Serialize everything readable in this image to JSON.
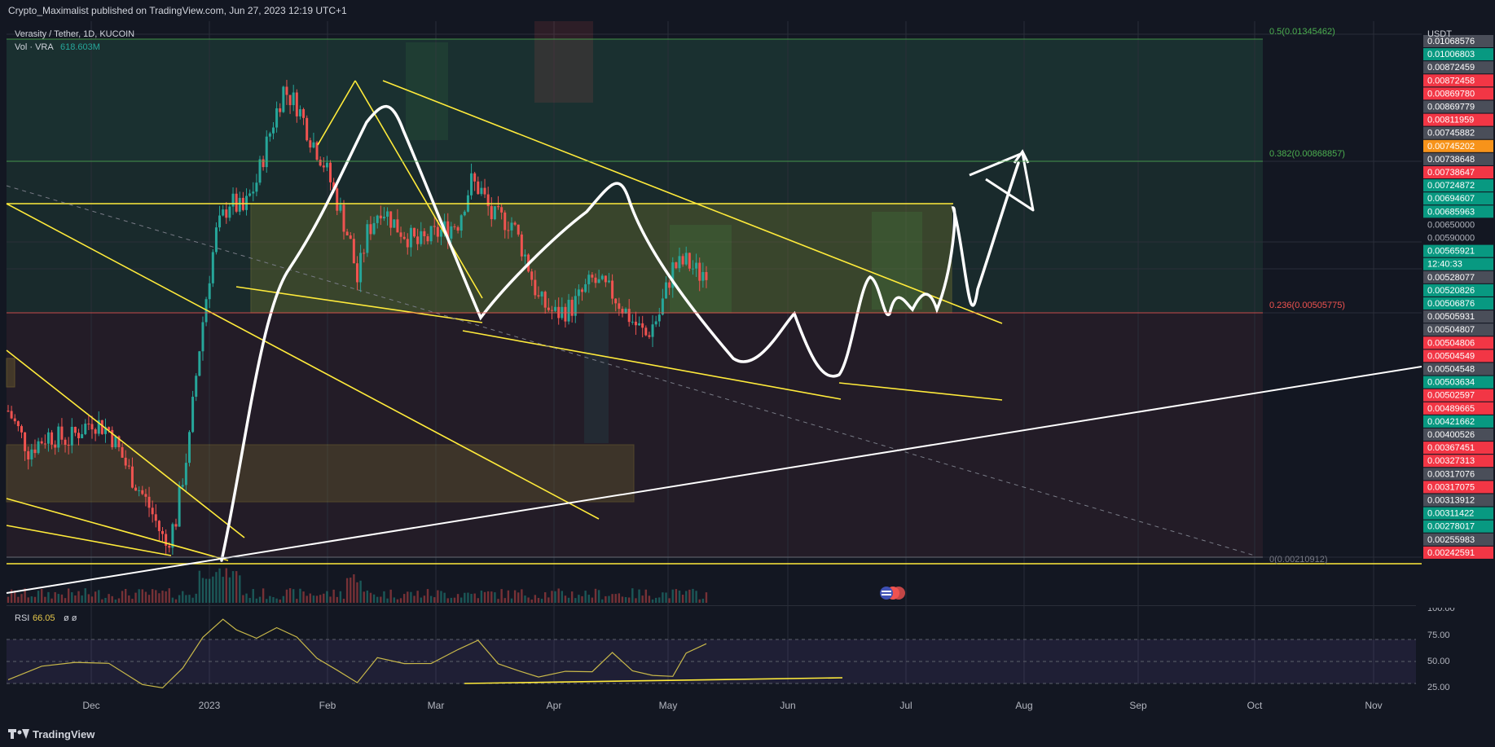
{
  "header": {
    "published": "Crypto_Maximalist published on TradingView.com, Jun 27, 2023 12:19 UTC+1"
  },
  "legend": {
    "symbol": "Verasity / Tether, 1D, KUCOIN",
    "vol_label": "Vol · VRA",
    "vol_value": "618.603M",
    "rsi_label": "RSI",
    "rsi_value": "66.05",
    "rsi_extra": "ø  ø"
  },
  "axis": {
    "currency": "USDT",
    "rsi_ticks": [
      "100.00",
      "75.00",
      "50.00",
      "25.00"
    ]
  },
  "brand": "TradingView",
  "colors": {
    "background": "#131722",
    "up": "#26a69a",
    "down": "#ef5350",
    "drawing_yellow": "#ffeb3b",
    "drawing_white": "#ffffff",
    "rsi_line": "#c8b84a",
    "fib_green": "#4caf50",
    "fib_red": "#ef5350"
  },
  "chart_data": {
    "type": "candlestick",
    "pair": "VRA/USDT",
    "interval": "1D",
    "exchange": "KUCOIN",
    "x_ticks": [
      "Dec",
      "2023",
      "Feb",
      "Mar",
      "Apr",
      "May",
      "Jun",
      "Jul",
      "Aug",
      "Sep",
      "Oct",
      "Nov"
    ],
    "price_scale_labels": [
      {
        "value": "0.01068576",
        "color": "#4a4e59"
      },
      {
        "value": "0.01006803",
        "color": "#089981"
      },
      {
        "value": "0.00872459",
        "color": "#4a4e59"
      },
      {
        "value": "0.00872458",
        "color": "#f23645"
      },
      {
        "value": "0.00869780",
        "color": "#f23645"
      },
      {
        "value": "0.00869779",
        "color": "#4a4e59"
      },
      {
        "value": "0.00811959",
        "color": "#f23645"
      },
      {
        "value": "0.00745882",
        "color": "#4a4e59"
      },
      {
        "value": "0.00745202",
        "color": "#f7931a"
      },
      {
        "value": "0.00738648",
        "color": "#4a4e59"
      },
      {
        "value": "0.00738647",
        "color": "#f23645"
      },
      {
        "value": "0.00724872",
        "color": "#089981"
      },
      {
        "value": "0.00694607",
        "color": "#089981"
      },
      {
        "value": "0.00685963",
        "color": "#089981"
      },
      {
        "value": "0.00650000",
        "color": ""
      },
      {
        "value": "0.00590000",
        "color": ""
      },
      {
        "value": "0.00565921",
        "color": "#089981"
      },
      {
        "value": "12:40:33",
        "color": "#089981"
      },
      {
        "value": "0.00528077",
        "color": "#4a4e59"
      },
      {
        "value": "0.00520826",
        "color": "#089981"
      },
      {
        "value": "0.00506876",
        "color": "#089981"
      },
      {
        "value": "0.00505931",
        "color": "#4a4e59"
      },
      {
        "value": "0.00504807",
        "color": "#4a4e59"
      },
      {
        "value": "0.00504806",
        "color": "#f23645"
      },
      {
        "value": "0.00504549",
        "color": "#f23645"
      },
      {
        "value": "0.00504548",
        "color": "#4a4e59"
      },
      {
        "value": "0.00503634",
        "color": "#089981"
      },
      {
        "value": "0.00502597",
        "color": "#f23645"
      },
      {
        "value": "0.00489665",
        "color": "#f23645"
      },
      {
        "value": "0.00421662",
        "color": "#089981"
      },
      {
        "value": "0.00400526",
        "color": "#4a4e59"
      },
      {
        "value": "0.00367451",
        "color": "#f23645"
      },
      {
        "value": "0.00327313",
        "color": "#f23645"
      },
      {
        "value": "0.00317076",
        "color": "#4a4e59"
      },
      {
        "value": "0.00317075",
        "color": "#f23645"
      },
      {
        "value": "0.00313912",
        "color": "#4a4e59"
      },
      {
        "value": "0.00311422",
        "color": "#089981"
      },
      {
        "value": "0.00278017",
        "color": "#089981"
      },
      {
        "value": "0.00255983",
        "color": "#4a4e59"
      },
      {
        "value": "0.00242591",
        "color": "#f23645"
      }
    ],
    "fib_levels": [
      {
        "label": "0.5(0.01345462)",
        "color": "#4caf50"
      },
      {
        "label": "0.382(0.00868857)",
        "color": "#4caf50"
      },
      {
        "label": "0.236(0.00505775)",
        "color": "#ef5350"
      },
      {
        "label": "0(0.00210912)",
        "color": "#787b86"
      }
    ],
    "price_path": [
      {
        "t": 0,
        "p": 0.0037
      },
      {
        "t": 6,
        "p": 0.0033
      },
      {
        "t": 12,
        "p": 0.00345
      },
      {
        "t": 18,
        "p": 0.0034
      },
      {
        "t": 25,
        "p": 0.0036
      },
      {
        "t": 30,
        "p": 0.0035
      },
      {
        "t": 36,
        "p": 0.0031
      },
      {
        "t": 42,
        "p": 0.0028
      },
      {
        "t": 47,
        "p": 0.0025
      },
      {
        "t": 50,
        "p": 0.0027
      },
      {
        "t": 54,
        "p": 0.0034
      },
      {
        "t": 58,
        "p": 0.0048
      },
      {
        "t": 62,
        "p": 0.0062
      },
      {
        "t": 66,
        "p": 0.0068
      },
      {
        "t": 70,
        "p": 0.0066
      },
      {
        "t": 74,
        "p": 0.0072
      },
      {
        "t": 78,
        "p": 0.0083
      },
      {
        "t": 82,
        "p": 0.0094
      },
      {
        "t": 86,
        "p": 0.009
      },
      {
        "t": 90,
        "p": 0.0082
      },
      {
        "t": 94,
        "p": 0.0076
      },
      {
        "t": 98,
        "p": 0.0068
      },
      {
        "t": 102,
        "p": 0.006
      },
      {
        "t": 104,
        "p": 0.0054
      },
      {
        "t": 107,
        "p": 0.0062
      },
      {
        "t": 111,
        "p": 0.0067
      },
      {
        "t": 116,
        "p": 0.0063
      },
      {
        "t": 122,
        "p": 0.006
      },
      {
        "t": 128,
        "p": 0.0062
      },
      {
        "t": 134,
        "p": 0.0064
      },
      {
        "t": 138,
        "p": 0.0072
      },
      {
        "t": 141,
        "p": 0.007
      },
      {
        "t": 144,
        "p": 0.0065
      },
      {
        "t": 150,
        "p": 0.0064
      },
      {
        "t": 154,
        "p": 0.0058
      },
      {
        "t": 158,
        "p": 0.0051
      },
      {
        "t": 163,
        "p": 0.0049
      },
      {
        "t": 168,
        "p": 0.005
      },
      {
        "t": 174,
        "p": 0.0054
      },
      {
        "t": 180,
        "p": 0.0052
      },
      {
        "t": 186,
        "p": 0.0048
      },
      {
        "t": 190,
        "p": 0.0046
      },
      {
        "t": 194,
        "p": 0.0049
      },
      {
        "t": 198,
        "p": 0.0056
      },
      {
        "t": 202,
        "p": 0.0057
      },
      {
        "t": 206,
        "p": 0.0055
      },
      {
        "t": 208,
        "p": 0.0056
      }
    ],
    "rsi_path": [
      {
        "t": 0,
        "v": 32
      },
      {
        "t": 10,
        "v": 42
      },
      {
        "t": 20,
        "v": 50
      },
      {
        "t": 30,
        "v": 45
      },
      {
        "t": 40,
        "v": 30
      },
      {
        "t": 46,
        "v": 26
      },
      {
        "t": 52,
        "v": 45
      },
      {
        "t": 58,
        "v": 72
      },
      {
        "t": 64,
        "v": 92
      },
      {
        "t": 68,
        "v": 80
      },
      {
        "t": 74,
        "v": 70
      },
      {
        "t": 80,
        "v": 84
      },
      {
        "t": 86,
        "v": 70
      },
      {
        "t": 92,
        "v": 55
      },
      {
        "t": 98,
        "v": 40
      },
      {
        "t": 104,
        "v": 31
      },
      {
        "t": 110,
        "v": 50
      },
      {
        "t": 118,
        "v": 48
      },
      {
        "t": 126,
        "v": 46
      },
      {
        "t": 134,
        "v": 58
      },
      {
        "t": 140,
        "v": 69
      },
      {
        "t": 146,
        "v": 45
      },
      {
        "t": 152,
        "v": 42
      },
      {
        "t": 158,
        "v": 34
      },
      {
        "t": 166,
        "v": 37
      },
      {
        "t": 174,
        "v": 40
      },
      {
        "t": 180,
        "v": 55
      },
      {
        "t": 186,
        "v": 40
      },
      {
        "t": 192,
        "v": 34
      },
      {
        "t": 198,
        "v": 38
      },
      {
        "t": 202,
        "v": 60
      },
      {
        "t": 208,
        "v": 66
      }
    ]
  }
}
